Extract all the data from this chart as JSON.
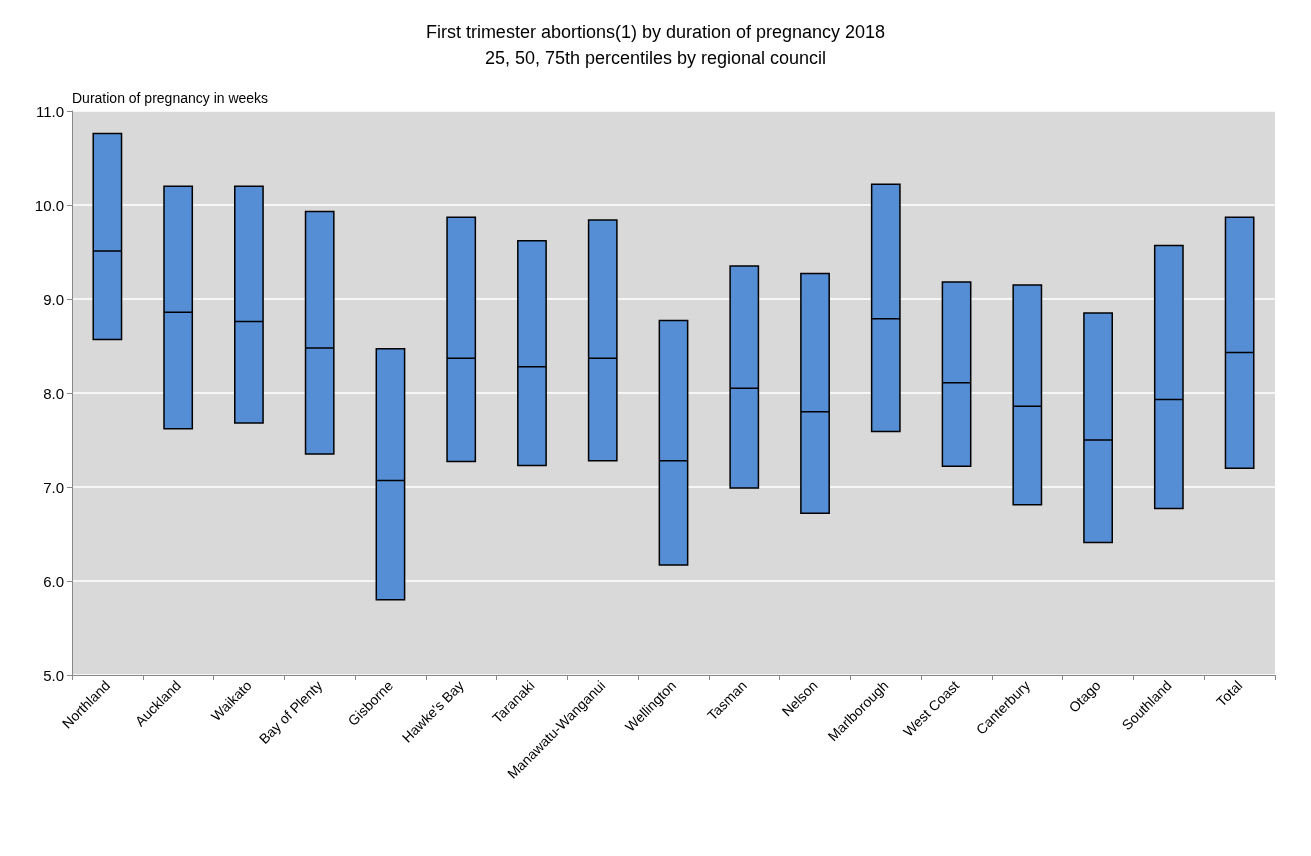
{
  "chart_data": {
    "type": "box",
    "title": "First trimester abortions(1) by duration of pregnancy 2018",
    "subtitle": "25, 50, 75th percentiles by regional council",
    "ylabel": "Duration of pregnancy in weeks",
    "categories": [
      "Northland",
      "Auckland",
      "Waikato",
      "Bay of Plenty",
      "Gisborne",
      "Hawke's Bay",
      "Taranaki",
      "Manawatu-Wanganui",
      "Wellington",
      "Tasman",
      "Nelson",
      "Marlborough",
      "West Coast",
      "Canterbury",
      "Otago",
      "Southland",
      "Total"
    ],
    "color": "#558ed5",
    "boxes": [
      {
        "low": 8.57,
        "q1": 8.57,
        "median": 9.51,
        "q3": 10.76,
        "high": 10.76
      },
      {
        "low": 7.62,
        "q1": 7.62,
        "median": 8.86,
        "q3": 10.2,
        "high": 10.2
      },
      {
        "low": 7.68,
        "q1": 7.68,
        "median": 8.76,
        "q3": 10.2,
        "high": 10.2
      },
      {
        "low": 7.35,
        "q1": 7.35,
        "median": 8.48,
        "q3": 9.93,
        "high": 9.93
      },
      {
        "low": 5.8,
        "q1": 5.8,
        "median": 7.07,
        "q3": 8.47,
        "high": 8.47
      },
      {
        "low": 7.27,
        "q1": 7.27,
        "median": 8.37,
        "q3": 9.87,
        "high": 9.87
      },
      {
        "low": 7.23,
        "q1": 7.23,
        "median": 8.28,
        "q3": 9.62,
        "high": 9.62
      },
      {
        "low": 7.28,
        "q1": 7.28,
        "median": 8.37,
        "q3": 9.84,
        "high": 9.84
      },
      {
        "low": 6.17,
        "q1": 6.17,
        "median": 7.28,
        "q3": 8.77,
        "high": 8.77
      },
      {
        "low": 6.99,
        "q1": 6.99,
        "median": 8.05,
        "q3": 9.35,
        "high": 9.35
      },
      {
        "low": 6.72,
        "q1": 6.72,
        "median": 7.8,
        "q3": 9.27,
        "high": 9.27
      },
      {
        "low": 7.59,
        "q1": 7.59,
        "median": 8.79,
        "q3": 10.22,
        "high": 10.22
      },
      {
        "low": 7.22,
        "q1": 7.22,
        "median": 8.11,
        "q3": 9.18,
        "high": 9.18
      },
      {
        "low": 6.81,
        "q1": 6.81,
        "median": 7.86,
        "q3": 9.15,
        "high": 9.15
      },
      {
        "low": 6.41,
        "q1": 6.41,
        "median": 7.5,
        "q3": 8.85,
        "high": 8.85
      },
      {
        "low": 6.77,
        "q1": 6.77,
        "median": 7.93,
        "q3": 9.57,
        "high": 9.57
      },
      {
        "low": 7.2,
        "q1": 7.2,
        "median": 8.43,
        "q3": 9.87,
        "high": 9.87
      }
    ],
    "ylim": [
      5,
      11
    ],
    "yticks": [
      {
        "value": 5,
        "label": "5.0"
      },
      {
        "value": 6,
        "label": "6.0"
      },
      {
        "value": 7,
        "label": "7.0"
      },
      {
        "value": 8,
        "label": "8.0"
      },
      {
        "value": 9,
        "label": "9.0"
      },
      {
        "value": 10,
        "label": "10.0"
      },
      {
        "value": 11,
        "label": "11.0"
      }
    ],
    "grid": "y"
  }
}
